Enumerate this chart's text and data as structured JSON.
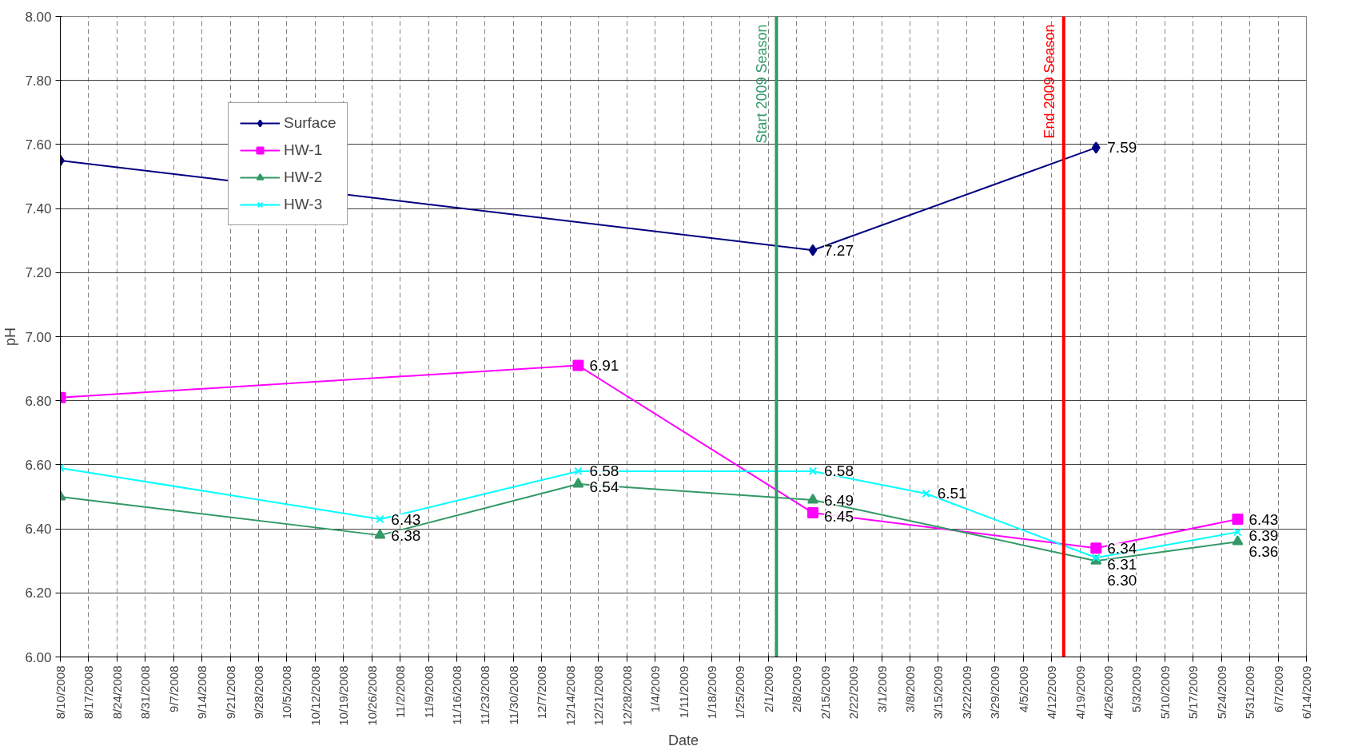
{
  "chart_data": {
    "type": "line",
    "xlabel": "Date",
    "ylabel": "pH",
    "xlim": [
      "2008-08-10",
      "2009-06-14"
    ],
    "xticks": [
      {
        "value": "2008-08-10",
        "label": "8/10/2008"
      },
      {
        "value": "2008-08-17",
        "label": "8/17/2008"
      },
      {
        "value": "2008-08-24",
        "label": "8/24/2008"
      },
      {
        "value": "2008-08-31",
        "label": "8/31/2008"
      },
      {
        "value": "2008-09-07",
        "label": "9/7/2008"
      },
      {
        "value": "2008-09-14",
        "label": "9/14/2008"
      },
      {
        "value": "2008-09-21",
        "label": "9/21/2008"
      },
      {
        "value": "2008-09-28",
        "label": "9/28/2008"
      },
      {
        "value": "2008-10-05",
        "label": "10/5/2008"
      },
      {
        "value": "2008-10-12",
        "label": "10/12/2008"
      },
      {
        "value": "2008-10-19",
        "label": "10/19/2008"
      },
      {
        "value": "2008-10-26",
        "label": "10/26/2008"
      },
      {
        "value": "2008-11-02",
        "label": "11/2/2008"
      },
      {
        "value": "2008-11-09",
        "label": "11/9/2008"
      },
      {
        "value": "2008-11-16",
        "label": "11/16/2008"
      },
      {
        "value": "2008-11-23",
        "label": "11/23/2008"
      },
      {
        "value": "2008-11-30",
        "label": "11/30/2008"
      },
      {
        "value": "2008-12-07",
        "label": "12/7/2008"
      },
      {
        "value": "2008-12-14",
        "label": "12/14/2008"
      },
      {
        "value": "2008-12-21",
        "label": "12/21/2008"
      },
      {
        "value": "2008-12-28",
        "label": "12/28/2008"
      },
      {
        "value": "2009-01-04",
        "label": "1/4/2009"
      },
      {
        "value": "2009-01-11",
        "label": "1/11/2009"
      },
      {
        "value": "2009-01-18",
        "label": "1/18/2009"
      },
      {
        "value": "2009-01-25",
        "label": "1/25/2009"
      },
      {
        "value": "2009-02-01",
        "label": "2/1/2009"
      },
      {
        "value": "2009-02-08",
        "label": "2/8/2009"
      },
      {
        "value": "2009-02-15",
        "label": "2/15/2009"
      },
      {
        "value": "2009-02-22",
        "label": "2/22/2009"
      },
      {
        "value": "2009-03-01",
        "label": "3/1/2009"
      },
      {
        "value": "2009-03-08",
        "label": "3/8/2009"
      },
      {
        "value": "2009-03-15",
        "label": "3/15/2009"
      },
      {
        "value": "2009-03-22",
        "label": "3/22/2009"
      },
      {
        "value": "2009-03-29",
        "label": "3/29/2009"
      },
      {
        "value": "2009-04-05",
        "label": "4/5/2009"
      },
      {
        "value": "2009-04-12",
        "label": "4/12/2009"
      },
      {
        "value": "2009-04-19",
        "label": "4/19/2009"
      },
      {
        "value": "2009-04-26",
        "label": "4/26/2009"
      },
      {
        "value": "2009-05-03",
        "label": "5/3/2009"
      },
      {
        "value": "2009-05-10",
        "label": "5/10/2009"
      },
      {
        "value": "2009-05-17",
        "label": "5/17/2009"
      },
      {
        "value": "2009-05-24",
        "label": "5/24/2009"
      },
      {
        "value": "2009-05-31",
        "label": "5/31/2009"
      },
      {
        "value": "2009-06-07",
        "label": "6/7/2009"
      },
      {
        "value": "2009-06-14",
        "label": "6/14/2009"
      }
    ],
    "ylim": [
      6.0,
      8.0
    ],
    "yticks": [
      {
        "value": 6.0,
        "label": "6.00"
      },
      {
        "value": 6.2,
        "label": "6.20"
      },
      {
        "value": 6.4,
        "label": "6.40"
      },
      {
        "value": 6.6,
        "label": "6.60"
      },
      {
        "value": 6.8,
        "label": "6.80"
      },
      {
        "value": 7.0,
        "label": "7.00"
      },
      {
        "value": 7.2,
        "label": "7.20"
      },
      {
        "value": 7.4,
        "label": "7.40"
      },
      {
        "value": 7.6,
        "label": "7.60"
      },
      {
        "value": 7.8,
        "label": "7.80"
      },
      {
        "value": 8.0,
        "label": "8.00"
      }
    ],
    "grid": true,
    "legend": "top left",
    "series": [
      {
        "name": "Surface",
        "color": "#000080",
        "marker": "diamond",
        "x": [
          "2008-08-10",
          "2009-02-12",
          "2009-04-23"
        ],
        "values": [
          7.55,
          7.27,
          7.59
        ],
        "value_labels": [
          null,
          "7.27",
          "7.59"
        ]
      },
      {
        "name": "HW-1",
        "color": "#ff00ff",
        "marker": "square",
        "x": [
          "2008-08-10",
          "2008-12-16",
          "2009-02-12",
          "2009-04-23",
          "2009-05-28"
        ],
        "values": [
          6.81,
          6.91,
          6.45,
          6.34,
          6.43
        ],
        "value_labels": [
          null,
          "6.91",
          "6.45",
          "6.34",
          "6.43"
        ]
      },
      {
        "name": "HW-2",
        "color": "#339966",
        "marker": "triangle",
        "x": [
          "2008-08-10",
          "2008-10-28",
          "2008-12-16",
          "2009-02-12",
          "2009-04-23",
          "2009-05-28"
        ],
        "values": [
          6.5,
          6.38,
          6.54,
          6.49,
          6.3,
          6.36
        ],
        "value_labels": [
          null,
          "6.38",
          "6.54",
          "6.49",
          "6.30",
          "6.36"
        ]
      },
      {
        "name": "HW-3",
        "color": "#00ffff",
        "marker": "cross",
        "x": [
          "2008-08-10",
          "2008-10-28",
          "2008-12-16",
          "2009-02-12",
          "2009-03-12",
          "2009-04-23",
          "2009-05-28"
        ],
        "values": [
          6.59,
          6.43,
          6.58,
          6.58,
          6.51,
          6.31,
          6.39
        ],
        "value_labels": [
          null,
          "6.43",
          "6.58",
          "6.58",
          "6.51",
          "6.31",
          "6.39"
        ]
      }
    ],
    "ref_lines": [
      {
        "axis": "x",
        "value": "2009-02-03",
        "label": "Start 2009 Season",
        "color": "#339966"
      },
      {
        "axis": "x",
        "value": "2009-04-15",
        "label": "End 2009 Season",
        "color": "#ff0000"
      }
    ]
  }
}
